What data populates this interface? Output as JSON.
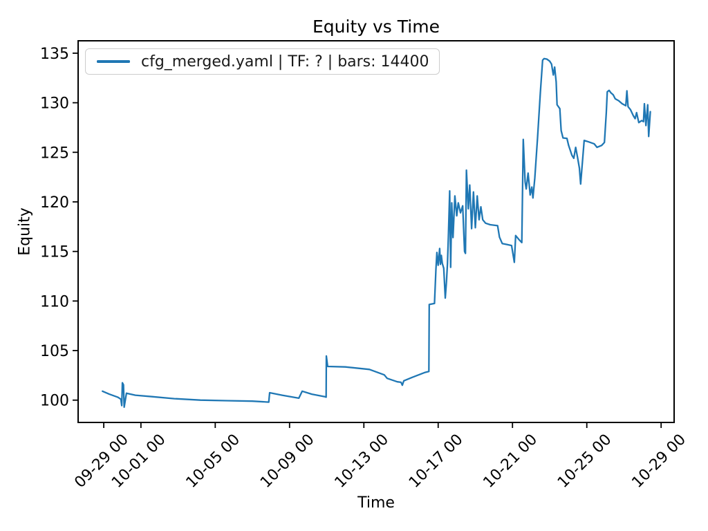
{
  "figure": {
    "title": "Equity vs Time",
    "xlabel": "Time",
    "ylabel": "Equity"
  },
  "legend": {
    "label": "cfg_merged.yaml | TF: ? | bars: 14400"
  },
  "chart_data": {
    "type": "line",
    "title": "Equity vs Time",
    "xlabel": "Time",
    "ylabel": "Equity",
    "grid": false,
    "legend_position": "upper left",
    "line_color": "#1f77b4",
    "axis_color": "#000000",
    "x_unit": "days since 09-29 00:00",
    "x_range": [
      -1.38,
      30.7
    ],
    "y_range": [
      97.75,
      136.25
    ],
    "x_ticks": [
      {
        "pos": 0,
        "label": "09-29 00"
      },
      {
        "pos": 2,
        "label": "10-01 00"
      },
      {
        "pos": 6,
        "label": "10-05 00"
      },
      {
        "pos": 10,
        "label": "10-09 00"
      },
      {
        "pos": 14,
        "label": "10-13 00"
      },
      {
        "pos": 18,
        "label": "10-17 00"
      },
      {
        "pos": 22,
        "label": "10-21 00"
      },
      {
        "pos": 26,
        "label": "10-25 00"
      },
      {
        "pos": 30,
        "label": "10-29 00"
      }
    ],
    "y_ticks": [
      100,
      105,
      110,
      115,
      120,
      125,
      130,
      135
    ],
    "series": [
      {
        "name": "cfg_merged.yaml | TF: ? | bars: 14400",
        "color": "#1f77b4",
        "points": [
          [
            -0.07,
            100.9
          ],
          [
            0.3,
            100.6
          ],
          [
            0.75,
            100.3
          ],
          [
            0.92,
            100.1
          ],
          [
            0.97,
            99.45
          ],
          [
            1.0,
            101.75
          ],
          [
            1.06,
            101.55
          ],
          [
            1.1,
            99.3
          ],
          [
            1.22,
            100.7
          ],
          [
            1.7,
            100.5
          ],
          [
            2.6,
            100.35
          ],
          [
            3.8,
            100.15
          ],
          [
            5.2,
            100.0
          ],
          [
            6.6,
            99.95
          ],
          [
            8.0,
            99.9
          ],
          [
            8.88,
            99.8
          ],
          [
            8.93,
            100.75
          ],
          [
            9.6,
            100.5
          ],
          [
            10.5,
            100.2
          ],
          [
            10.68,
            100.9
          ],
          [
            11.2,
            100.6
          ],
          [
            11.9,
            100.35
          ],
          [
            11.97,
            100.3
          ],
          [
            11.98,
            104.45
          ],
          [
            12.05,
            103.4
          ],
          [
            13.0,
            103.35
          ],
          [
            14.3,
            103.1
          ],
          [
            15.1,
            102.55
          ],
          [
            15.25,
            102.2
          ],
          [
            15.8,
            101.85
          ],
          [
            16.0,
            101.8
          ],
          [
            16.07,
            101.5
          ],
          [
            16.15,
            101.95
          ],
          [
            16.6,
            102.3
          ],
          [
            17.3,
            102.8
          ],
          [
            17.5,
            102.9
          ],
          [
            17.52,
            109.65
          ],
          [
            17.8,
            109.75
          ],
          [
            17.88,
            113.2
          ],
          [
            17.93,
            114.9
          ],
          [
            18.0,
            113.6
          ],
          [
            18.08,
            115.3
          ],
          [
            18.12,
            113.7
          ],
          [
            18.17,
            114.6
          ],
          [
            18.22,
            113.8
          ],
          [
            18.3,
            113.3
          ],
          [
            18.38,
            110.3
          ],
          [
            18.45,
            112.0
          ],
          [
            18.5,
            113.8
          ],
          [
            18.55,
            116.5
          ],
          [
            18.62,
            121.1
          ],
          [
            18.67,
            113.4
          ],
          [
            18.73,
            119.9
          ],
          [
            18.8,
            116.4
          ],
          [
            18.9,
            120.6
          ],
          [
            19.0,
            118.6
          ],
          [
            19.08,
            119.9
          ],
          [
            19.2,
            118.9
          ],
          [
            19.32,
            119.6
          ],
          [
            19.42,
            115.0
          ],
          [
            19.47,
            114.8
          ],
          [
            19.52,
            123.2
          ],
          [
            19.62,
            119.3
          ],
          [
            19.7,
            121.7
          ],
          [
            19.8,
            117.3
          ],
          [
            19.9,
            121.0
          ],
          [
            20.0,
            117.4
          ],
          [
            20.1,
            120.6
          ],
          [
            20.2,
            118.2
          ],
          [
            20.3,
            119.5
          ],
          [
            20.4,
            118.2
          ],
          [
            20.55,
            117.85
          ],
          [
            20.8,
            117.7
          ],
          [
            21.2,
            117.6
          ],
          [
            21.3,
            116.45
          ],
          [
            21.45,
            115.8
          ],
          [
            21.7,
            115.7
          ],
          [
            21.95,
            115.6
          ],
          [
            22.1,
            113.9
          ],
          [
            22.17,
            116.6
          ],
          [
            22.35,
            116.2
          ],
          [
            22.5,
            115.9
          ],
          [
            22.58,
            126.3
          ],
          [
            22.68,
            122.0
          ],
          [
            22.74,
            121.3
          ],
          [
            22.84,
            122.9
          ],
          [
            22.95,
            120.7
          ],
          [
            23.04,
            121.5
          ],
          [
            23.1,
            120.4
          ],
          [
            23.2,
            122.4
          ],
          [
            23.35,
            126.5
          ],
          [
            23.5,
            131.0
          ],
          [
            23.62,
            134.3
          ],
          [
            23.7,
            134.45
          ],
          [
            23.85,
            134.4
          ],
          [
            24.0,
            134.2
          ],
          [
            24.1,
            133.9
          ],
          [
            24.2,
            132.8
          ],
          [
            24.27,
            133.6
          ],
          [
            24.35,
            132.1
          ],
          [
            24.4,
            129.8
          ],
          [
            24.55,
            129.4
          ],
          [
            24.62,
            127.2
          ],
          [
            24.72,
            126.45
          ],
          [
            24.93,
            126.4
          ],
          [
            25.02,
            125.7
          ],
          [
            25.2,
            124.7
          ],
          [
            25.3,
            124.4
          ],
          [
            25.4,
            125.5
          ],
          [
            25.5,
            124.5
          ],
          [
            25.6,
            123.4
          ],
          [
            25.67,
            121.8
          ],
          [
            25.86,
            126.2
          ],
          [
            26.1,
            126.05
          ],
          [
            26.4,
            125.85
          ],
          [
            26.55,
            125.5
          ],
          [
            26.8,
            125.7
          ],
          [
            26.95,
            126.0
          ],
          [
            27.05,
            129.0
          ],
          [
            27.1,
            131.1
          ],
          [
            27.2,
            131.25
          ],
          [
            27.3,
            131.0
          ],
          [
            27.42,
            130.8
          ],
          [
            27.53,
            130.4
          ],
          [
            27.72,
            130.2
          ],
          [
            27.9,
            129.9
          ],
          [
            28.1,
            129.7
          ],
          [
            28.16,
            131.2
          ],
          [
            28.22,
            129.6
          ],
          [
            28.35,
            129.3
          ],
          [
            28.5,
            128.7
          ],
          [
            28.6,
            128.4
          ],
          [
            28.68,
            129.0
          ],
          [
            28.8,
            128.0
          ],
          [
            28.95,
            128.2
          ],
          [
            29.05,
            128.1
          ],
          [
            29.1,
            129.9
          ],
          [
            29.18,
            127.7
          ],
          [
            29.28,
            129.8
          ],
          [
            29.33,
            126.6
          ],
          [
            29.42,
            129.1
          ]
        ]
      }
    ]
  }
}
